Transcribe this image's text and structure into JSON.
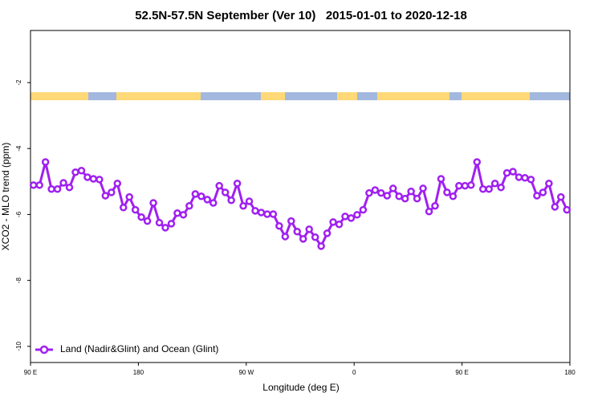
{
  "chart_data": {
    "type": "line",
    "title": "52.5N-57.5N September (Ver 10)   2015-01-01 to 2020-12-18",
    "xlabel": "Longitude (deg E)",
    "ylabel": "XCO2 - MLO trend (ppm)",
    "xlim": [
      90,
      540
    ],
    "xticks": [
      {
        "value": 90,
        "label": "90 E"
      },
      180,
      {
        "value": 270,
        "label": "90 W"
      },
      {
        "value": 360,
        "label": "0"
      },
      {
        "value": 450,
        "label": "90 E"
      },
      {
        "value": 540,
        "label": "180"
      }
    ],
    "ylim": [
      -10.49,
      -0.42
    ],
    "yticks": [
      -10,
      -8,
      -6,
      -4,
      -2
    ],
    "legend": "bottom left",
    "x": [
      92.5,
      97.5,
      102.5,
      107.5,
      112.5,
      117.5,
      122.5,
      127.5,
      132.5,
      137.5,
      142.5,
      147.5,
      152.5,
      157.5,
      162.5,
      167.5,
      172.5,
      177.5,
      182.5,
      187.5,
      192.5,
      197.5,
      202.5,
      207.5,
      212.5,
      217.5,
      222.5,
      227.5,
      232.5,
      237.5,
      242.5,
      247.5,
      252.5,
      257.5,
      262.5,
      267.5,
      272.5,
      277.5,
      282.5,
      287.5,
      292.5,
      297.5,
      302.5,
      307.5,
      312.5,
      317.5,
      322.5,
      327.5,
      332.5,
      337.5,
      342.5,
      347.5,
      352.5,
      357.5,
      362.5,
      367.5,
      372.5,
      377.5,
      382.5,
      387.5,
      392.5,
      397.5,
      402.5,
      407.5,
      412.5,
      417.5,
      422.5,
      427.5,
      432.5,
      437.5,
      442.5,
      447.5,
      452.5,
      457.5,
      462.5,
      467.5,
      472.5,
      477.5,
      482.5,
      487.5,
      492.5,
      497.5,
      502.5,
      507.5,
      512.5,
      517.5,
      522.5,
      527.5,
      532.5,
      537.5
    ],
    "series": [
      {
        "name": "Land (Nadir&Glint) and Ocean (Glint)",
        "color": "#a020f0",
        "values": [
          -5.11,
          -5.11,
          -4.41,
          -5.23,
          -5.23,
          -5.04,
          -5.18,
          -4.72,
          -4.67,
          -4.87,
          -4.92,
          -4.94,
          -5.43,
          -5.33,
          -5.06,
          -5.79,
          -5.47,
          -5.86,
          -6.08,
          -6.2,
          -5.65,
          -6.25,
          -6.4,
          -6.28,
          -5.96,
          -6.01,
          -5.74,
          -5.38,
          -5.45,
          -5.55,
          -5.65,
          -5.13,
          -5.33,
          -5.57,
          -5.06,
          -5.74,
          -5.6,
          -5.89,
          -5.94,
          -5.99,
          -5.99,
          -6.35,
          -6.67,
          -6.2,
          -6.52,
          -6.74,
          -6.45,
          -6.69,
          -6.96,
          -6.57,
          -6.23,
          -6.3,
          -6.06,
          -6.11,
          -6.01,
          -5.86,
          -5.35,
          -5.26,
          -5.35,
          -5.43,
          -5.21,
          -5.45,
          -5.52,
          -5.3,
          -5.52,
          -5.21,
          -5.91,
          -5.74,
          -4.92,
          -5.33,
          -5.45,
          -5.13,
          -5.13,
          -5.11,
          -4.41,
          -5.23,
          -5.23,
          -5.06,
          -5.18,
          -4.74,
          -4.7,
          -4.87,
          -4.89,
          -4.94,
          -5.43,
          -5.33,
          -5.06,
          -5.77,
          -5.47,
          -5.86
        ]
      }
    ]
  }
}
